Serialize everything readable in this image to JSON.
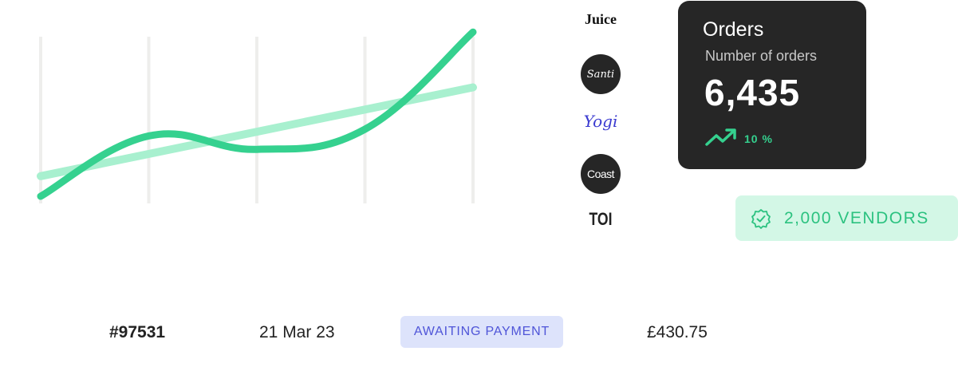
{
  "chart_data": {
    "type": "line",
    "x": [
      0,
      1,
      2,
      3,
      4
    ],
    "series": [
      {
        "values": [
          0,
          3.6,
          2.8,
          4.0,
          9.8
        ],
        "color": "#35d18f"
      },
      {
        "values": [
          1.2,
          2.6,
          3.9,
          5.2,
          6.5
        ],
        "color": "#a8f0cf"
      }
    ],
    "xlim": [
      0,
      4
    ],
    "ylim": [
      0,
      10
    ],
    "grid": true,
    "grid_color": "#eeeeec"
  },
  "logos": {
    "juice": "Juice",
    "santi": "Santi",
    "yogi": "Yogi",
    "coast": "Coast",
    "toi": "TOI"
  },
  "orders_card": {
    "title": "Orders",
    "subtitle": "Number of orders",
    "value": "6,435",
    "trend_icon": "trending-up-icon",
    "trend_value": "10 %"
  },
  "vendors_badge": {
    "icon": "verified-badge-icon",
    "label": "2,000 VENDORS"
  },
  "order_row": {
    "id": "#97531",
    "date": "21 Mar 23",
    "status": "AWAITING PAYMENT",
    "amount": "£430.75"
  },
  "colors": {
    "accent_green": "#35d18f",
    "light_green": "#a8f0cf",
    "card_dark": "#262626",
    "badge_bg": "#d3f7e6",
    "status_bg": "#dde3fb",
    "status_text": "#4f55d8"
  }
}
